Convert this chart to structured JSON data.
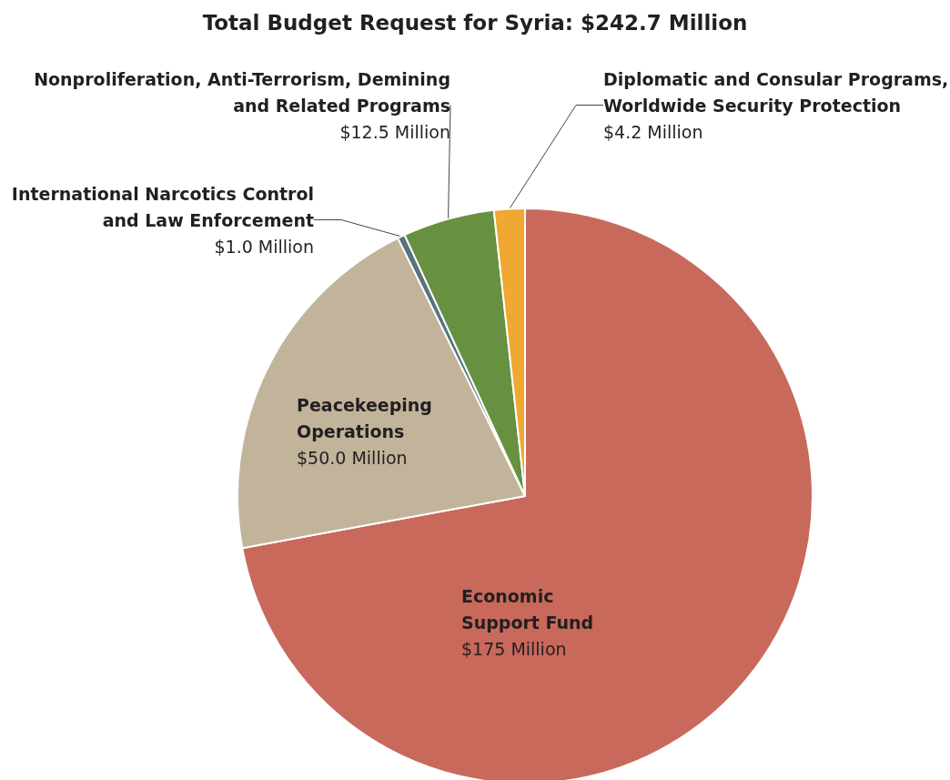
{
  "chart_data": {
    "type": "pie",
    "title": "Total Budget Request for Syria: $242.7 Million",
    "categories": [
      "Economic Support Fund",
      "Peacekeeping Operations",
      "International Narcotics Control and Law Enforcement",
      "Nonproliferation, Anti-Terrorism, Demining and Related Programs",
      "Diplomatic and Consular Programs, Worldwide Security Protection"
    ],
    "values": [
      175,
      50,
      1.0,
      12.5,
      4.2
    ],
    "value_labels": [
      "$175 Million",
      "$50.0 Million",
      "$1.0 Million",
      "$12.5 Million",
      "$4.2 Million"
    ],
    "colors": [
      "#c8695c",
      "#c2b49b",
      "#577380",
      "#679040",
      "#f0a830"
    ],
    "legend": false
  }
}
